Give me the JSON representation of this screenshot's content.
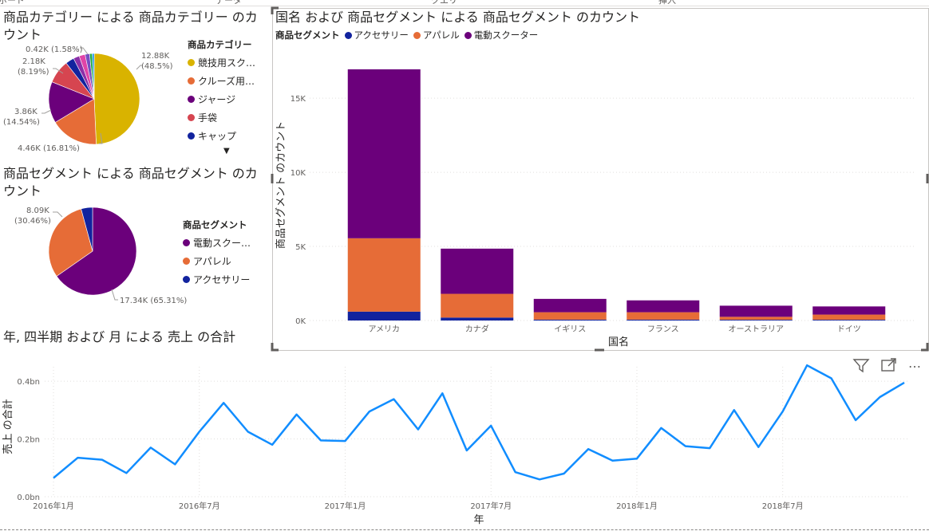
{
  "top_tabs": [
    "ボード",
    "データ",
    "クエリ",
    "挿入"
  ],
  "pie1": {
    "title": "商品カテゴリー による 商品カテゴリー のカウント",
    "legend_title": "商品カテゴリー",
    "legend_items": [
      {
        "label": "競技用スク…",
        "color": "#D9B300"
      },
      {
        "label": "クルーズ用…",
        "color": "#E66C37"
      },
      {
        "label": "ジャージ",
        "color": "#6B007B"
      },
      {
        "label": "手袋",
        "color": "#D64550"
      },
      {
        "label": "キャップ",
        "color": "#12239E"
      }
    ],
    "more_arrow": "▼",
    "labels": {
      "s1": "12.88K",
      "s1p": "(48.5%)",
      "s2": "4.46K (16.81%)",
      "s3": "3.86K",
      "s3p": "(14.54%)",
      "s4": "2.18K",
      "s4p": "(8.19%)",
      "s5": "0.42K (1.58%)"
    }
  },
  "pie2": {
    "title": "商品セグメント による 商品セグメント のカウント",
    "legend_title": "商品セグメント",
    "legend_items": [
      {
        "label": "電動スクー…",
        "color": "#6B007B"
      },
      {
        "label": "アパレル",
        "color": "#E66C37"
      },
      {
        "label": "アクセサリー",
        "color": "#12239E"
      }
    ],
    "labels": {
      "a": "8.09K",
      "ap": "(30.46%)",
      "b": "17.34K (65.31%)"
    }
  },
  "bar": {
    "title": "国名 および 商品セグメント による 商品セグメント のカウント",
    "legend_title": "商品セグメント",
    "legend_items": [
      {
        "label": "アクセサリー",
        "color": "#12239E"
      },
      {
        "label": "アパレル",
        "color": "#E66C37"
      },
      {
        "label": "電動スクーター",
        "color": "#6B007B"
      }
    ]
  },
  "line": {
    "title": "年, 四半期 および 月 による 売上 の合計"
  },
  "icons": {
    "filter": "filter-icon",
    "focus": "focus-mode-icon",
    "more": "more-options-icon"
  },
  "more_label": "…",
  "chart_data": [
    {
      "type": "pie",
      "title": "商品カテゴリー による 商品カテゴリー のカウント",
      "legend_title": "商品カテゴリー",
      "slices": [
        {
          "label": "競技用スク…",
          "value": 12.88,
          "unit": "K",
          "percent": 48.5,
          "color": "#D9B300"
        },
        {
          "label": "クルーズ用…",
          "value": 4.46,
          "unit": "K",
          "percent": 16.81,
          "color": "#E66C37"
        },
        {
          "label": "ジャージ",
          "value": 3.86,
          "unit": "K",
          "percent": 14.54,
          "color": "#6B007B"
        },
        {
          "label": "手袋",
          "value": 2.18,
          "unit": "K",
          "percent": 8.19,
          "color": "#D64550"
        },
        {
          "label": "キャップ",
          "value": 0.8,
          "unit": "K",
          "color": "#12239E"
        },
        {
          "value": 0.56,
          "unit": "K",
          "color": "#8B2FA8"
        },
        {
          "value": 0.56,
          "unit": "K",
          "color": "#E044A7"
        },
        {
          "value": 0.42,
          "unit": "K",
          "percent": 1.58,
          "color": "#744EC2"
        },
        {
          "value": 0.24,
          "unit": "K",
          "color": "#1AAB40"
        },
        {
          "value": 0.18,
          "unit": "K",
          "color": "#118DFF"
        }
      ]
    },
    {
      "type": "pie",
      "title": "商品セグメント による 商品セグメント のカウント",
      "legend_title": "商品セグメント",
      "slices": [
        {
          "label": "電動スクー…",
          "value": 17.34,
          "unit": "K",
          "percent": 65.31,
          "color": "#6B007B"
        },
        {
          "label": "アパレル",
          "value": 8.09,
          "unit": "K",
          "percent": 30.46,
          "color": "#E66C37"
        },
        {
          "label": "アクセサリー",
          "value": 1.12,
          "unit": "K",
          "percent": 4.23,
          "color": "#12239E"
        }
      ]
    },
    {
      "type": "bar",
      "stacked": true,
      "title": "国名 および 商品セグメント による 商品セグメント のカウント",
      "xlabel": "国名",
      "ylabel": "商品セグメント のカウント",
      "categories": [
        "アメリカ",
        "カナダ",
        "イギリス",
        "フランス",
        "オーストラリア",
        "ドイツ"
      ],
      "series": [
        {
          "name": "アクセサリー",
          "color": "#12239E",
          "values": [
            600,
            200,
            60,
            60,
            50,
            50
          ]
        },
        {
          "name": "アパレル",
          "color": "#E66C37",
          "values": [
            4950,
            1600,
            500,
            500,
            200,
            350
          ]
        },
        {
          "name": "電動スクーター",
          "color": "#6B007B",
          "values": [
            11400,
            3050,
            900,
            800,
            750,
            550
          ]
        }
      ],
      "ylim": [
        0,
        17000
      ],
      "yticks": [
        0,
        5000,
        10000,
        15000
      ],
      "ytick_labels": [
        "0K",
        "5K",
        "10K",
        "15K"
      ],
      "grid": true
    },
    {
      "type": "line",
      "title": "年, 四半期 および 月 による 売上 の合計",
      "xlabel": "年",
      "ylabel": "売上 の合計",
      "unit": "bn",
      "color": "#118DFF",
      "x_tick_labels": [
        "2016年1月",
        "2016年7月",
        "2017年1月",
        "2017年7月",
        "2018年1月",
        "2018年7月"
      ],
      "y_tick_labels": [
        "0.0bn",
        "0.2bn",
        "0.4bn"
      ],
      "ylim": [
        0,
        0.45
      ],
      "x_months": [
        "2016-01",
        "2016-02",
        "2016-03",
        "2016-04",
        "2016-05",
        "2016-06",
        "2016-07",
        "2016-08",
        "2016-09",
        "2016-10",
        "2016-11",
        "2016-12",
        "2017-01",
        "2017-02",
        "2017-03",
        "2017-04",
        "2017-05",
        "2017-06",
        "2017-07",
        "2017-08",
        "2017-09",
        "2017-10",
        "2017-11",
        "2017-12",
        "2018-01",
        "2018-02",
        "2018-03",
        "2018-04",
        "2018-05",
        "2018-06",
        "2018-07",
        "2018-08",
        "2018-09",
        "2018-10",
        "2018-11",
        "2018-12"
      ],
      "values": [
        0.065,
        0.135,
        0.128,
        0.082,
        0.17,
        0.112,
        0.225,
        0.325,
        0.225,
        0.18,
        0.285,
        0.195,
        0.193,
        0.295,
        0.338,
        0.233,
        0.358,
        0.16,
        0.246,
        0.085,
        0.06,
        0.08,
        0.165,
        0.125,
        0.132,
        0.238,
        0.175,
        0.168,
        0.3,
        0.172,
        0.295,
        0.455,
        0.41,
        0.265,
        0.345,
        0.395
      ],
      "grid": true
    }
  ]
}
